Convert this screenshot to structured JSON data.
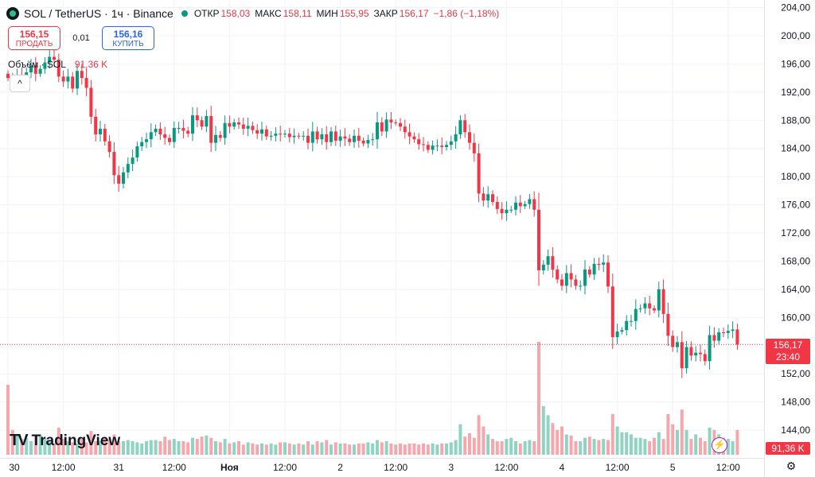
{
  "header": {
    "symbol": "SOL / TetherUS · 1ч · Binance",
    "icon": "solana-icon",
    "open_label": "ОТКР",
    "open": "158,03",
    "high_label": "МАКС",
    "high": "158,11",
    "low_label": "МИН",
    "low": "155,95",
    "close_label": "ЗАКР",
    "close": "156,17",
    "change": "−1,86 (−1,18%)"
  },
  "trade": {
    "sell_price": "156,15",
    "sell_label": "ПРОДАТЬ",
    "spread": "0,01",
    "buy_price": "156,16",
    "buy_label": "КУПИТЬ"
  },
  "volume": {
    "label": "Объём · SOL",
    "value": "91,36 K"
  },
  "price_label": {
    "price": "156,17",
    "countdown": "23:40"
  },
  "volume_label": "91,36 K",
  "logo": {
    "mark": "TV",
    "text": "TradingView"
  },
  "colors": {
    "up": "#089981",
    "down": "#f23645",
    "up_vol": "#8fd4c3",
    "down_vol": "#f7a6ac",
    "grid": "#f0f3fa"
  },
  "chart_data": {
    "type": "candlestick",
    "y_ticks": [
      "204,00",
      "200,00",
      "196,00",
      "192,00",
      "188,00",
      "184,00",
      "180,00",
      "176,00",
      "172,00",
      "168,00",
      "164,00",
      "160,00",
      "156,00",
      "152,00",
      "148,00",
      "144,00"
    ],
    "y_tick_values": [
      204,
      200,
      196,
      192,
      188,
      184,
      180,
      176,
      172,
      168,
      164,
      160,
      156,
      152,
      148,
      144
    ],
    "x_ticks": [
      {
        "label": "30",
        "index": 0
      },
      {
        "label": "12:00",
        "index": 12
      },
      {
        "label": "31",
        "index": 24
      },
      {
        "label": "12:00",
        "index": 36
      },
      {
        "label": "Ноя",
        "index": 48,
        "bold": true
      },
      {
        "label": "12:00",
        "index": 60
      },
      {
        "label": "2",
        "index": 72
      },
      {
        "label": "12:00",
        "index": 84
      },
      {
        "label": "3",
        "index": 96
      },
      {
        "label": "12:00",
        "index": 108
      },
      {
        "label": "4",
        "index": 120
      },
      {
        "label": "12:00",
        "index": 132
      },
      {
        "label": "5",
        "index": 144
      },
      {
        "label": "12:00",
        "index": 156
      }
    ],
    "current_price": 156.17,
    "close_series": [
      194,
      193.4,
      194.3,
      193.8,
      194.8,
      195.8,
      194.6,
      195.3,
      196.2,
      197.0,
      196.6,
      194.2,
      193.5,
      194.2,
      192.5,
      195.0,
      194.0,
      192.6,
      188.5,
      186.0,
      186.8,
      185.0,
      183.5,
      180.2,
      179.0,
      180.6,
      181.8,
      182.7,
      184.3,
      184.9,
      185.3,
      186.3,
      186.8,
      186.0,
      185.5,
      184.9,
      186.9,
      186.9,
      186.5,
      186.1,
      188.7,
      188.0,
      187.1,
      188.6,
      184.8,
      185.9,
      185.5,
      187.6,
      187.1,
      187.7,
      187.4,
      186.8,
      187.2,
      186.6,
      186.1,
      186.7,
      185.7,
      185.8,
      186.1,
      186.0,
      186.1,
      185.6,
      185.8,
      185.7,
      185.8,
      184.8,
      186.4,
      185.3,
      186.0,
      184.9,
      186.4,
      185.1,
      185.7,
      185.4,
      184.9,
      185.8,
      185.1,
      184.7,
      185.2,
      185.3,
      187.7,
      186.4,
      188.1,
      187.7,
      187.6,
      187.1,
      186.3,
      185.7,
      185.3,
      184.6,
      184.5,
      183.8,
      184.4,
      184.4,
      184.2,
      184.5,
      185.0,
      186.0,
      188.0,
      186.3,
      184.8,
      183.3,
      177.6,
      176.6,
      177.5,
      176.4,
      175.4,
      174.8,
      175.3,
      175.3,
      176.3,
      175.8,
      176.1,
      176.8,
      175.3,
      166.7,
      167.5,
      168.7,
      166.8,
      165.4,
      164.5,
      166.3,
      165.4,
      164.5,
      164.5,
      166.8,
      166.1,
      167.6,
      167.5,
      167.8,
      164.4,
      157.2,
      158.0,
      158.2,
      159.5,
      159.5,
      161.2,
      161.3,
      162.0,
      161.3,
      161.0,
      164.0,
      160.5,
      157.4,
      155.8,
      156.5,
      152.8,
      155.8,
      154.6,
      155.0,
      154.8,
      153.8,
      157.5,
      156.7,
      157.9,
      157.8,
      158.1,
      158.3,
      156.17
    ],
    "volume_series": [
      62,
      22,
      18,
      14,
      15,
      12,
      17,
      18,
      14,
      13,
      10,
      24,
      14,
      12,
      11,
      10,
      14,
      11,
      21,
      12,
      12,
      15,
      14,
      18,
      12,
      12,
      13,
      12,
      11,
      10,
      12,
      13,
      13,
      12,
      16,
      13,
      14,
      12,
      12,
      11,
      15,
      14,
      16,
      17,
      15,
      12,
      11,
      14,
      10,
      11,
      12,
      9,
      11,
      10,
      9,
      10,
      9,
      10,
      9,
      11,
      11,
      10,
      9,
      10,
      9,
      12,
      9,
      12,
      11,
      13,
      9,
      11,
      10,
      10,
      9,
      9,
      10,
      10,
      11,
      10,
      13,
      11,
      12,
      10,
      9,
      10,
      9,
      10,
      10,
      9,
      10,
      9,
      10,
      9,
      10,
      10,
      11,
      13,
      27,
      16,
      19,
      15,
      35,
      25,
      18,
      14,
      12,
      12,
      14,
      15,
      12,
      10,
      12,
      13,
      12,
      100,
      43,
      35,
      28,
      22,
      25,
      18,
      17,
      12,
      12,
      15,
      16,
      14,
      13,
      14,
      13,
      36,
      25,
      20,
      20,
      18,
      15,
      15,
      14,
      12,
      15,
      20,
      14,
      36,
      27,
      22,
      40,
      22,
      14,
      18,
      15,
      12,
      24,
      22,
      18,
      15,
      14,
      12,
      22
    ]
  }
}
